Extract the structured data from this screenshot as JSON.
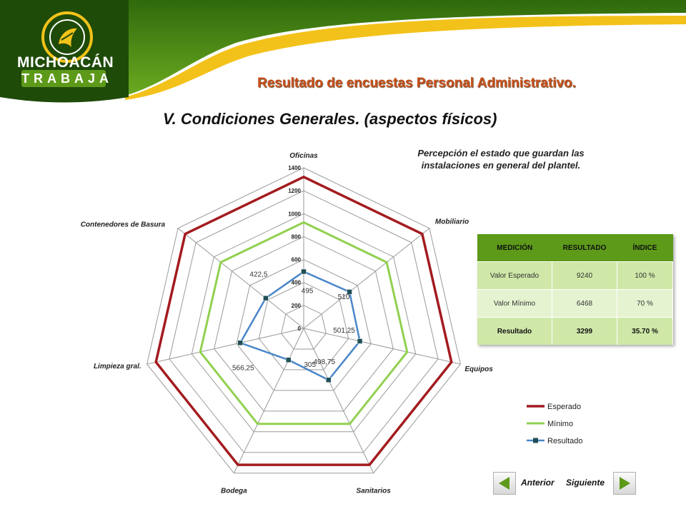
{
  "brand": {
    "main": "MICHOACÁN",
    "sub": "TRABAJA"
  },
  "slide_title": "Resultado de encuestas Personal Administrativo.",
  "section_title": "V. Condiciones Generales. (aspectos físicos)",
  "perception_note": "Percepción el estado que guardan las instalaciones en general del plantel.",
  "colors": {
    "esperado": "#a31b1f",
    "minimo": "#92d050",
    "resultado": "#4a86c8",
    "banner_green": "#5d9a19",
    "title_orange": "#c8501c"
  },
  "chart_data": {
    "type": "radar",
    "categories": [
      "Oficinas",
      "Mobiliario",
      "Equipos",
      "Sanitarios",
      "Bodega",
      "Limpieza gral.",
      "Contenedores de Basura"
    ],
    "rlim": [
      0,
      1400
    ],
    "r_ticks": [
      "0",
      "200",
      "400",
      "600",
      "800",
      "1000",
      "1200",
      "1400"
    ],
    "series": [
      {
        "name": "Esperado",
        "values": [
          1320,
          1320,
          1320,
          1320,
          1320,
          1320,
          1320
        ]
      },
      {
        "name": "Mínimo",
        "values": [
          924,
          924,
          924,
          924,
          924,
          924,
          924
        ]
      },
      {
        "name": "Resultado",
        "values": [
          495,
          510,
          501.25,
          498.75,
          305,
          566.25,
          422.5
        ],
        "data_labels": [
          "495",
          "510",
          "501,25",
          "498,75",
          "305",
          "566,25",
          "422,5"
        ]
      }
    ],
    "legend_position": "right",
    "grid": true
  },
  "summary_table": {
    "headers": [
      "MEDICIÓN",
      "RESULTADO",
      "ÍNDICE"
    ],
    "rows": [
      [
        "Valor Esperado",
        "9240",
        "100 %"
      ],
      [
        "Valor Mínimo",
        "6468",
        "70 %"
      ],
      [
        "Resultado",
        "3299",
        "35.70 %"
      ]
    ]
  },
  "nav": {
    "prev_label": "Anterior",
    "next_label": "Siguiente"
  }
}
